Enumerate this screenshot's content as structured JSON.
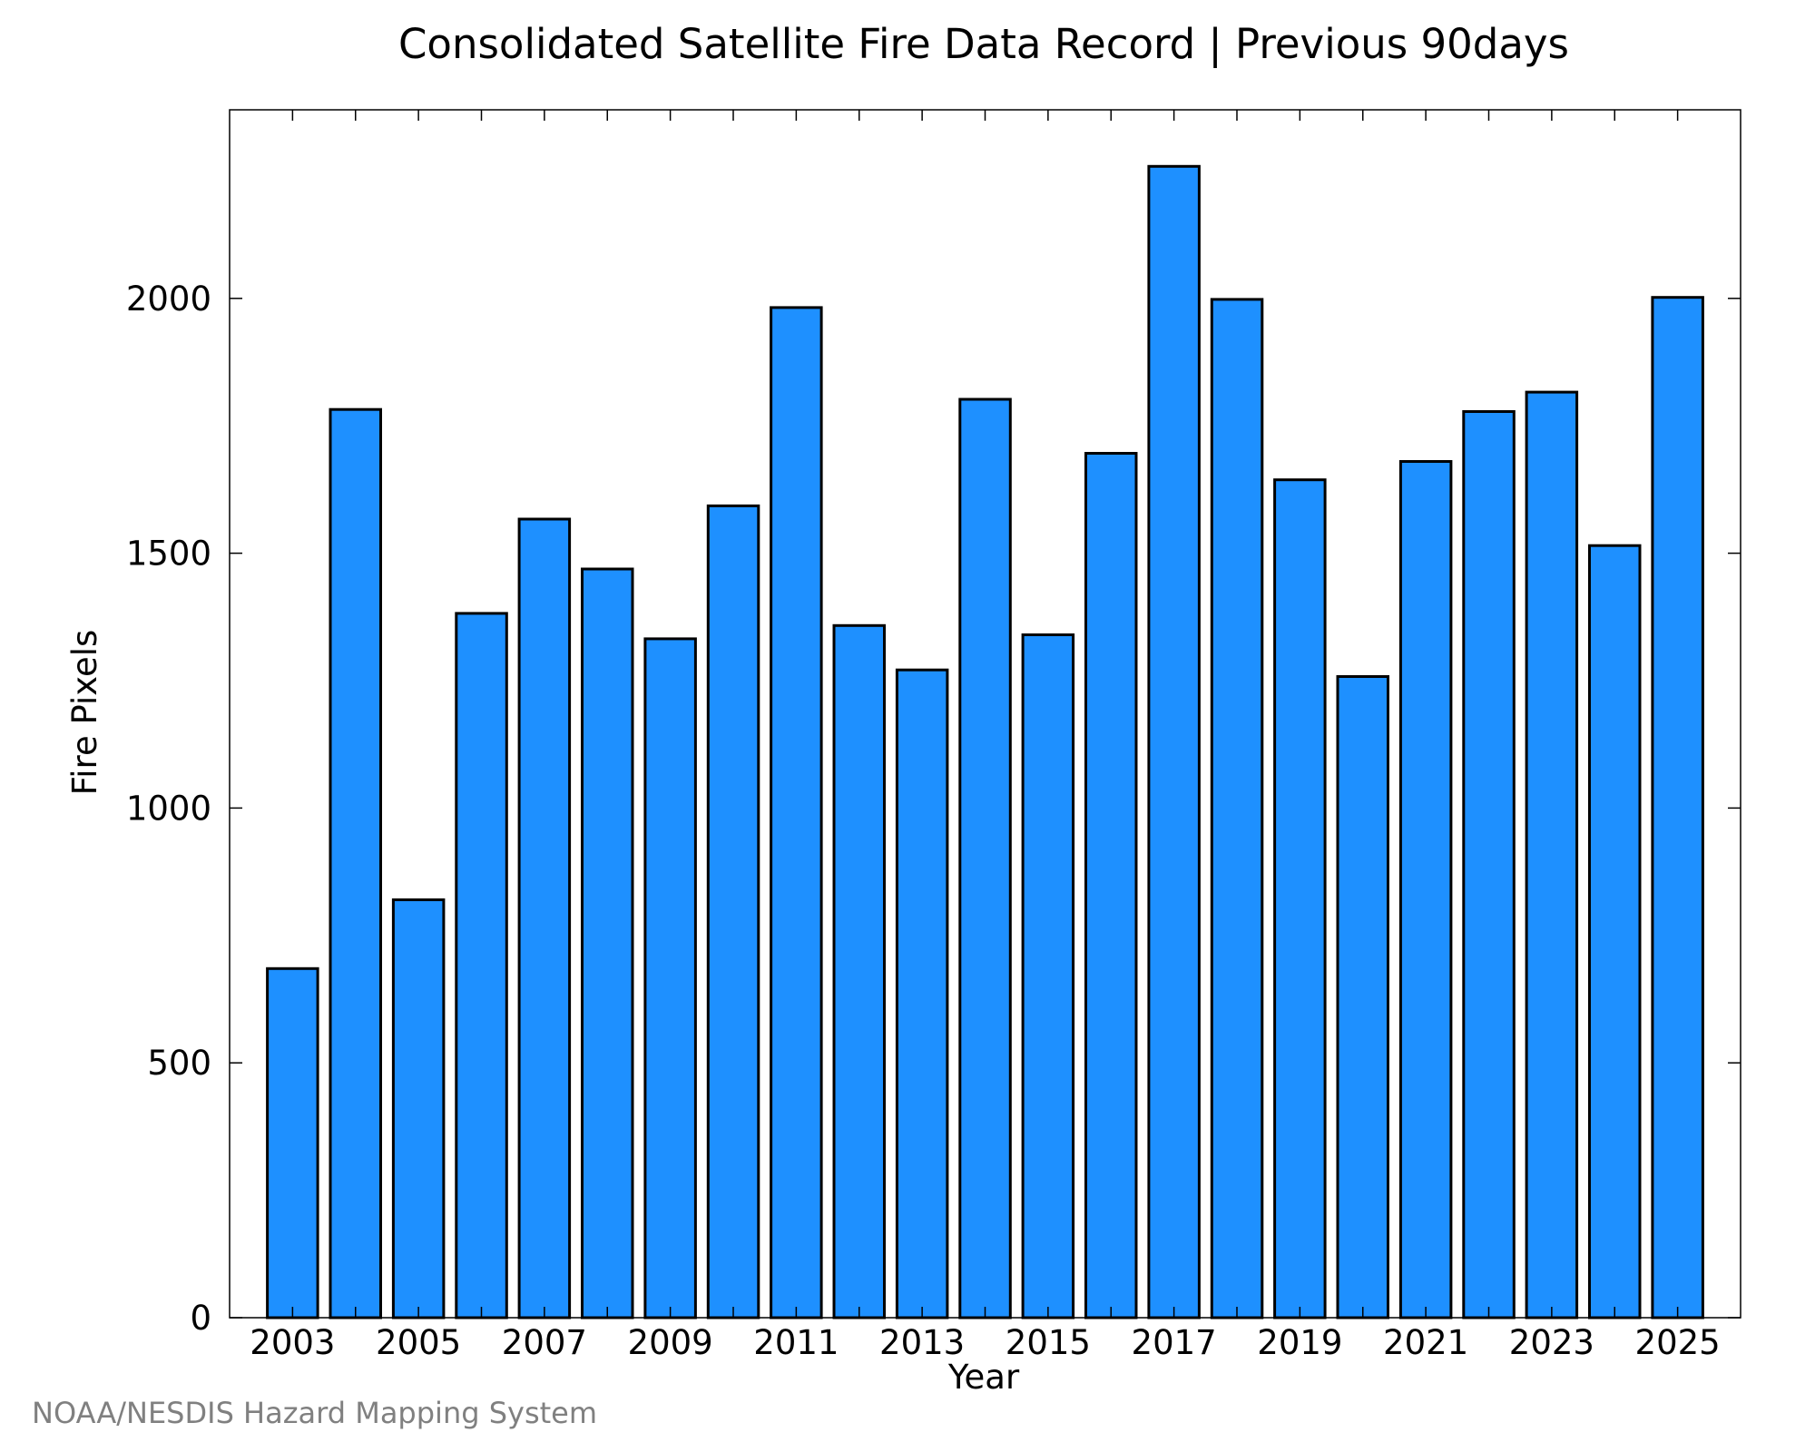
{
  "chart_data": {
    "type": "bar",
    "title": "Consolidated Satellite Fire Data Record | Previous 90days",
    "xlabel": "Year",
    "ylabel": "Fire Pixels",
    "categories": [
      "2003",
      "2004",
      "2005",
      "2006",
      "2007",
      "2008",
      "2009",
      "2010",
      "2011",
      "2012",
      "2013",
      "2014",
      "2015",
      "2016",
      "2017",
      "2018",
      "2019",
      "2020",
      "2021",
      "2022",
      "2023",
      "2024",
      "2025"
    ],
    "values": [
      685,
      1782,
      820,
      1382,
      1567,
      1469,
      1332,
      1593,
      1982,
      1358,
      1271,
      1802,
      1340,
      1696,
      2259,
      1998,
      1644,
      1258,
      1680,
      1778,
      1816,
      1515,
      2002
    ],
    "x_tick_labels": [
      "2003",
      "2005",
      "2007",
      "2009",
      "2011",
      "2013",
      "2015",
      "2017",
      "2019",
      "2021",
      "2023",
      "2025"
    ],
    "y_tick_labels": [
      "0",
      "500",
      "1000",
      "1500",
      "2000"
    ],
    "ylim": [
      0,
      2370
    ],
    "grid": false,
    "legend": "none",
    "bar_color": "#1e90ff",
    "bar_edge_color": "#000000"
  },
  "footer": {
    "credit": "NOAA/NESDIS Hazard Mapping System"
  }
}
